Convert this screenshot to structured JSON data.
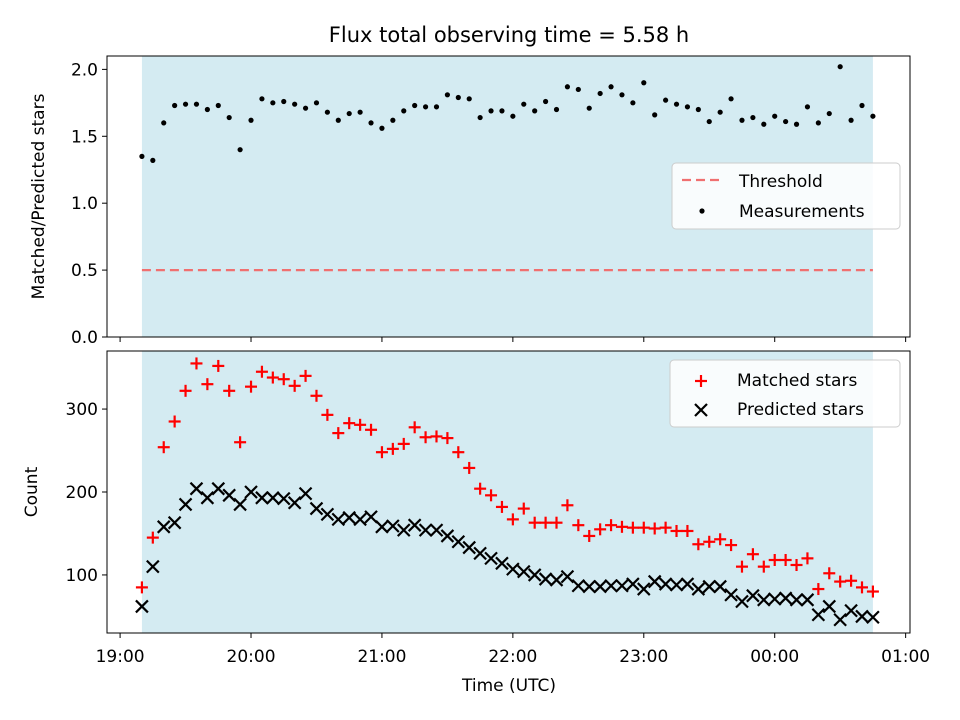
{
  "chart_data": [
    {
      "type": "scatter",
      "title": "Flux total observing time = 5.58 h",
      "xlabel": "",
      "ylabel": "Matched/Predicted stars",
      "xlim": [
        "18:54",
        "01:02"
      ],
      "ylim": [
        0.0,
        2.1
      ],
      "yticks": [
        0.0,
        0.5,
        1.0,
        1.5,
        2.0
      ],
      "ytick_labels": [
        "0.0",
        "0.5",
        "1.0",
        "1.5",
        "2.0"
      ],
      "observing_window": {
        "start": "19:10",
        "end": "00:45",
        "color": "#d4ebf2"
      },
      "threshold": {
        "name": "Threshold",
        "value": 0.5,
        "color": "#f07070",
        "style": "dashed"
      },
      "legend": {
        "position": "center-right",
        "entries": [
          "Threshold",
          "Measurements"
        ]
      },
      "series": [
        {
          "name": "Measurements",
          "marker": "dot",
          "color": "#000000",
          "x": [
            "19:10",
            "19:15",
            "19:20",
            "19:25",
            "19:30",
            "19:35",
            "19:40",
            "19:45",
            "19:50",
            "19:55",
            "20:00",
            "20:05",
            "20:10",
            "20:15",
            "20:20",
            "20:25",
            "20:30",
            "20:35",
            "20:40",
            "20:45",
            "20:50",
            "20:55",
            "21:00",
            "21:05",
            "21:10",
            "21:15",
            "21:20",
            "21:25",
            "21:30",
            "21:35",
            "21:40",
            "21:45",
            "21:50",
            "21:55",
            "22:00",
            "22:05",
            "22:10",
            "22:15",
            "22:20",
            "22:25",
            "22:30",
            "22:35",
            "22:40",
            "22:45",
            "22:50",
            "22:55",
            "23:00",
            "23:05",
            "23:10",
            "23:15",
            "23:20",
            "23:25",
            "23:30",
            "23:35",
            "23:40",
            "23:45",
            "23:50",
            "23:55",
            "00:00",
            "00:05",
            "00:10",
            "00:15",
            "00:20",
            "00:25",
            "00:30",
            "00:35",
            "00:40",
            "00:45"
          ],
          "y": [
            1.35,
            1.32,
            1.6,
            1.73,
            1.74,
            1.74,
            1.7,
            1.73,
            1.64,
            1.4,
            1.62,
            1.78,
            1.75,
            1.76,
            1.74,
            1.71,
            1.75,
            1.68,
            1.62,
            1.67,
            1.68,
            1.6,
            1.56,
            1.62,
            1.69,
            1.73,
            1.72,
            1.72,
            1.81,
            1.79,
            1.78,
            1.64,
            1.69,
            1.69,
            1.65,
            1.74,
            1.69,
            1.76,
            1.7,
            1.87,
            1.85,
            1.71,
            1.82,
            1.87,
            1.81,
            1.75,
            1.9,
            1.66,
            1.77,
            1.74,
            1.72,
            1.7,
            1.61,
            1.68,
            1.78,
            1.62,
            1.64,
            1.59,
            1.65,
            1.61,
            1.59,
            1.72,
            1.6,
            1.67,
            2.02,
            1.62,
            1.73,
            1.65
          ]
        }
      ]
    },
    {
      "type": "scatter",
      "title": "",
      "xlabel": "Time (UTC)",
      "ylabel": "Count",
      "xlim": [
        "18:54",
        "01:02"
      ],
      "ylim": [
        30,
        370
      ],
      "yticks": [
        100,
        200,
        300
      ],
      "ytick_labels": [
        "100",
        "200",
        "300"
      ],
      "xticks": [
        "19:00",
        "20:00",
        "21:00",
        "22:00",
        "23:00",
        "00:00",
        "01:00"
      ],
      "observing_window": {
        "start": "19:10",
        "end": "00:45",
        "color": "#d4ebf2"
      },
      "legend": {
        "position": "top-right",
        "entries": [
          "Matched stars",
          "Predicted stars"
        ]
      },
      "series": [
        {
          "name": "Matched stars",
          "marker": "plus",
          "color": "#ff0000",
          "x": [
            "19:10",
            "19:15",
            "19:20",
            "19:25",
            "19:30",
            "19:35",
            "19:40",
            "19:45",
            "19:50",
            "19:55",
            "20:00",
            "20:05",
            "20:10",
            "20:15",
            "20:20",
            "20:25",
            "20:30",
            "20:35",
            "20:40",
            "20:45",
            "20:50",
            "20:55",
            "21:00",
            "21:05",
            "21:10",
            "21:15",
            "21:20",
            "21:25",
            "21:30",
            "21:35",
            "21:40",
            "21:45",
            "21:50",
            "21:55",
            "22:00",
            "22:05",
            "22:10",
            "22:15",
            "22:20",
            "22:25",
            "22:30",
            "22:35",
            "22:40",
            "22:45",
            "22:50",
            "22:55",
            "23:00",
            "23:05",
            "23:10",
            "23:15",
            "23:20",
            "23:25",
            "23:30",
            "23:35",
            "23:40",
            "23:45",
            "23:50",
            "23:55",
            "00:00",
            "00:05",
            "00:10",
            "00:15",
            "00:20",
            "00:25",
            "00:30",
            "00:35",
            "00:40",
            "00:45"
          ],
          "y": [
            85,
            145,
            254,
            285,
            322,
            355,
            330,
            352,
            322,
            260,
            327,
            345,
            338,
            336,
            328,
            340,
            316,
            293,
            271,
            283,
            281,
            275,
            248,
            252,
            258,
            278,
            266,
            267,
            265,
            248,
            229,
            204,
            196,
            182,
            167,
            180,
            163,
            163,
            163,
            184,
            160,
            147,
            155,
            160,
            158,
            157,
            157,
            156,
            157,
            153,
            153,
            137,
            140,
            143,
            136,
            110,
            125,
            110,
            118,
            118,
            112,
            120,
            83,
            102,
            92,
            93,
            85,
            80
          ]
        },
        {
          "name": "Predicted stars",
          "marker": "x",
          "color": "#000000",
          "x": [
            "19:10",
            "19:15",
            "19:20",
            "19:25",
            "19:30",
            "19:35",
            "19:40",
            "19:45",
            "19:50",
            "19:55",
            "20:00",
            "20:05",
            "20:10",
            "20:15",
            "20:20",
            "20:25",
            "20:30",
            "20:35",
            "20:40",
            "20:45",
            "20:50",
            "20:55",
            "21:00",
            "21:05",
            "21:10",
            "21:15",
            "21:20",
            "21:25",
            "21:30",
            "21:35",
            "21:40",
            "21:45",
            "21:50",
            "21:55",
            "22:00",
            "22:05",
            "22:10",
            "22:15",
            "22:20",
            "22:25",
            "22:30",
            "22:35",
            "22:40",
            "22:45",
            "22:50",
            "22:55",
            "23:00",
            "23:05",
            "23:10",
            "23:15",
            "23:20",
            "23:25",
            "23:30",
            "23:35",
            "23:40",
            "23:45",
            "23:50",
            "23:55",
            "00:00",
            "00:05",
            "00:10",
            "00:15",
            "00:20",
            "00:25",
            "00:30",
            "00:35",
            "00:40",
            "00:45"
          ],
          "y": [
            62,
            110,
            158,
            163,
            185,
            204,
            193,
            204,
            196,
            185,
            200,
            193,
            193,
            192,
            187,
            198,
            180,
            173,
            167,
            169,
            167,
            170,
            158,
            159,
            154,
            160,
            154,
            154,
            147,
            140,
            133,
            126,
            120,
            114,
            107,
            104,
            100,
            95,
            94,
            98,
            87,
            86,
            86,
            87,
            87,
            89,
            83,
            92,
            89,
            88,
            89,
            83,
            86,
            86,
            76,
            68,
            75,
            70,
            71,
            72,
            70,
            70,
            52,
            62,
            46,
            57,
            50,
            49
          ]
        }
      ]
    }
  ]
}
